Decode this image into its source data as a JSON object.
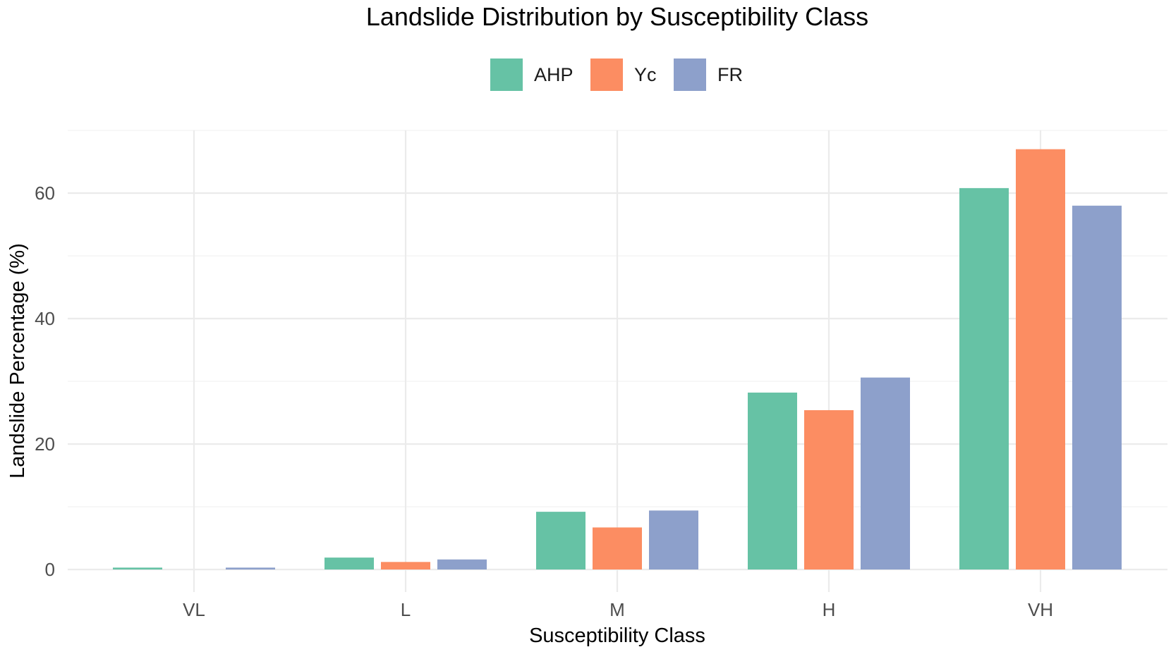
{
  "chart_data": {
    "type": "bar",
    "title": "Landslide Distribution by Susceptibility Class",
    "xlabel": "Susceptibility Class",
    "ylabel": "Landslide Percentage (%)",
    "categories": [
      "VL",
      "L",
      "M",
      "H",
      "VH"
    ],
    "series": [
      {
        "name": "AHP",
        "color": "#66c2a5",
        "values": [
          0.3,
          1.9,
          9.2,
          28.2,
          60.8
        ]
      },
      {
        "name": "Yc",
        "color": "#fc8d62",
        "values": [
          0.0,
          1.2,
          6.7,
          25.4,
          67.0
        ]
      },
      {
        "name": "FR",
        "color": "#8da0cb",
        "values": [
          0.3,
          1.6,
          9.4,
          30.6,
          58.0
        ]
      }
    ],
    "yticks": [
      0,
      20,
      40,
      60
    ],
    "ylim": [
      -1.5,
      70
    ],
    "grid": true,
    "legend": "top-center"
  }
}
